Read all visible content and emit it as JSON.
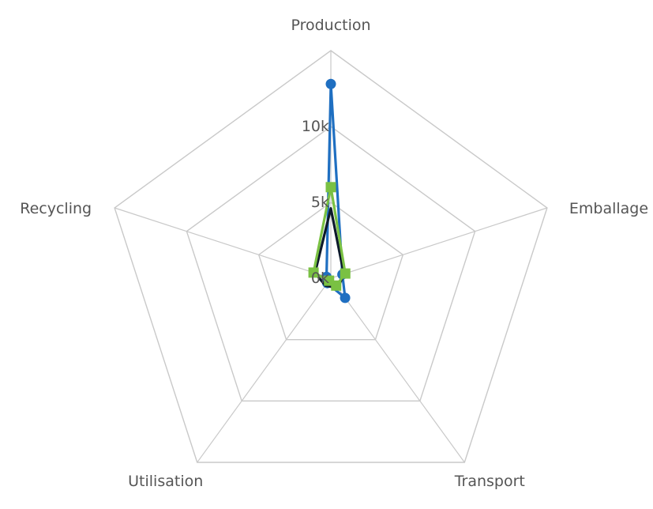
{
  "chart_data": {
    "type": "radar",
    "categories": [
      "Production",
      "Emballage",
      "Transport",
      "Utilisation",
      "Recycling"
    ],
    "rmax": 15000,
    "rings": [
      0,
      5000,
      10000,
      15000
    ],
    "tick_labels": [
      "0k",
      "5k",
      "10k"
    ],
    "tick_values": [
      0,
      5000,
      10000
    ],
    "series": [
      {
        "color": "#1f6fc1",
        "marker": "circle",
        "values": [
          12800,
          800,
          1600,
          400,
          300
        ]
      },
      {
        "color": "#0d1a2b",
        "marker": "none",
        "values": [
          4600,
          900,
          800,
          600,
          1100
        ]
      },
      {
        "color": "#7ac143",
        "marker": "square",
        "values": [
          6000,
          1000,
          600,
          200,
          1200
        ]
      }
    ],
    "grid": true
  }
}
